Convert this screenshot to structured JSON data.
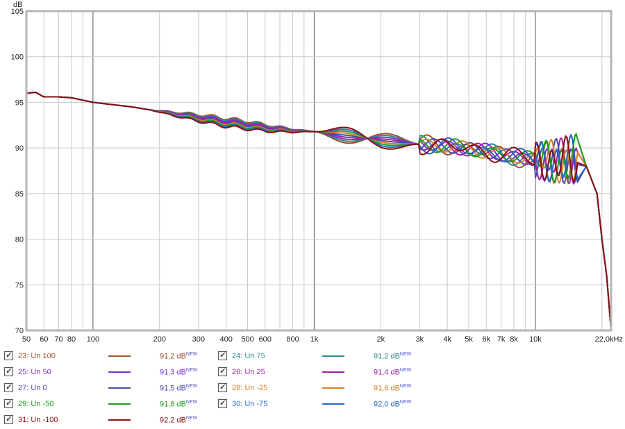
{
  "chart_data": {
    "type": "line",
    "ylabel": "dB",
    "ylim": [
      70,
      105
    ],
    "xlim": [
      50,
      22000
    ],
    "xscale": "log",
    "grid": true,
    "yticks": [
      {
        "v": 70,
        "label": "70"
      },
      {
        "v": 75,
        "label": "75"
      },
      {
        "v": 80,
        "label": "80"
      },
      {
        "v": 85,
        "label": "85"
      },
      {
        "v": 90,
        "label": "90"
      },
      {
        "v": 95,
        "label": "95"
      },
      {
        "v": 100,
        "label": "100"
      },
      {
        "v": 105,
        "label": "105"
      }
    ],
    "xticks": [
      {
        "v": 50,
        "label": "50"
      },
      {
        "v": 60,
        "label": "60"
      },
      {
        "v": 70,
        "label": "70"
      },
      {
        "v": 80,
        "label": "80"
      },
      {
        "v": 100,
        "label": "100"
      },
      {
        "v": 200,
        "label": "200"
      },
      {
        "v": 300,
        "label": "300"
      },
      {
        "v": 400,
        "label": "400"
      },
      {
        "v": 500,
        "label": "500"
      },
      {
        "v": 600,
        "label": "600"
      },
      {
        "v": 800,
        "label": "800"
      },
      {
        "v": 1000,
        "label": "1k"
      },
      {
        "v": 2000,
        "label": "2k"
      },
      {
        "v": 3000,
        "label": "3k"
      },
      {
        "v": 4000,
        "label": "4k"
      },
      {
        "v": 5000,
        "label": "5k"
      },
      {
        "v": 6000,
        "label": "6k"
      },
      {
        "v": 7000,
        "label": "7k"
      },
      {
        "v": 8000,
        "label": "8k"
      },
      {
        "v": 10000,
        "label": "10k"
      },
      {
        "v": 22000,
        "label": "22,0kHz"
      }
    ],
    "series": [
      {
        "name": "23: Un 100",
        "value": "91,2 dB",
        "color": "#a0522d",
        "param": 100,
        "tail": [
          [
            17000,
            88.0
          ],
          [
            19000,
            85.0
          ],
          [
            20000,
            80.0
          ],
          [
            21000,
            76.0
          ],
          [
            22000,
            70.0
          ]
        ]
      },
      {
        "name": "24: Un 75",
        "value": "91,2 dB",
        "color": "#2a8c8c",
        "param": 75,
        "tail": [
          [
            17000,
            88.0
          ],
          [
            19000,
            85.0
          ],
          [
            20000,
            80.0
          ],
          [
            21000,
            76.0
          ],
          [
            22000,
            70.0
          ]
        ]
      },
      {
        "name": "25: Un 50",
        "value": "91,3 dB",
        "color": "#7b2fd6",
        "param": 50,
        "tail": [
          [
            17000,
            88.0
          ],
          [
            19000,
            85.0
          ],
          [
            20000,
            80.0
          ],
          [
            21000,
            76.0
          ],
          [
            22000,
            70.0
          ]
        ]
      },
      {
        "name": "26: Un 25",
        "value": "91,4 dB",
        "color": "#a020a0",
        "param": 25,
        "tail": [
          [
            17000,
            88.0
          ],
          [
            19000,
            85.0
          ],
          [
            20000,
            80.0
          ],
          [
            21000,
            76.0
          ],
          [
            22000,
            70.0
          ]
        ]
      },
      {
        "name": "27: Un 0",
        "value": "91,5 dB",
        "color": "#4a4aa8",
        "param": 0,
        "tail": [
          [
            17000,
            88.0
          ],
          [
            19000,
            85.0
          ],
          [
            20000,
            80.0
          ],
          [
            21000,
            76.0
          ],
          [
            22000,
            70.0
          ]
        ]
      },
      {
        "name": "28: Un -25",
        "value": "91,6 dB",
        "color": "#d4822a",
        "param": -25,
        "tail": [
          [
            17000,
            88.0
          ],
          [
            19000,
            85.0
          ],
          [
            20000,
            80.0
          ],
          [
            21000,
            76.0
          ],
          [
            22000,
            70.0
          ]
        ]
      },
      {
        "name": "29: Un -50",
        "value": "91,8 dB",
        "color": "#1f9a1f",
        "param": -50,
        "tail": [
          [
            17000,
            88.0
          ],
          [
            19000,
            85.0
          ],
          [
            20000,
            80.0
          ],
          [
            21000,
            76.0
          ],
          [
            22000,
            70.0
          ]
        ]
      },
      {
        "name": "30: Un -75",
        "value": "92,0 dB",
        "color": "#2a66c8",
        "param": -75,
        "tail": [
          [
            17000,
            88.0
          ],
          [
            19000,
            85.0
          ],
          [
            20000,
            80.0
          ],
          [
            21000,
            76.0
          ],
          [
            22000,
            70.0
          ]
        ]
      },
      {
        "name": "31: Un -100",
        "value": "92,2 dB",
        "color": "#8b1010",
        "param": -100,
        "tail": [
          [
            17000,
            88.0
          ],
          [
            19000,
            85.0
          ],
          [
            20000,
            80.0
          ],
          [
            21000,
            76.0
          ],
          [
            22000,
            70.0
          ]
        ]
      }
    ],
    "base_curve": [
      [
        50,
        96.0
      ],
      [
        55,
        96.1
      ],
      [
        60,
        95.6
      ],
      [
        70,
        95.6
      ],
      [
        80,
        95.5
      ],
      [
        100,
        95.0
      ],
      [
        150,
        94.5
      ],
      [
        200,
        94.0
      ],
      [
        300,
        93.3
      ],
      [
        400,
        92.8
      ],
      [
        500,
        92.5
      ],
      [
        600,
        92.2
      ],
      [
        800,
        91.9
      ],
      [
        1000,
        91.8
      ],
      [
        1500,
        91.3
      ],
      [
        2000,
        90.8
      ],
      [
        3000,
        90.4
      ],
      [
        4000,
        90.2
      ],
      [
        5000,
        89.9
      ],
      [
        6000,
        89.6
      ],
      [
        7000,
        89.3
      ],
      [
        8000,
        89.0
      ],
      [
        10000,
        88.8
      ],
      [
        13000,
        88.5
      ],
      [
        15000,
        88.5
      ]
    ],
    "sup_label": "NEW"
  }
}
